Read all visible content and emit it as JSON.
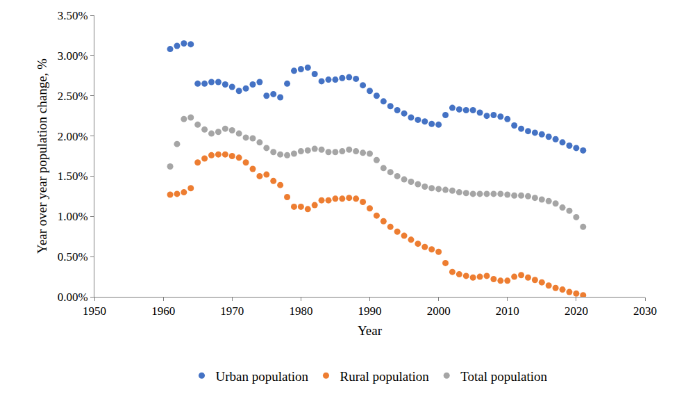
{
  "chart_data": {
    "type": "scatter",
    "marker": "circle",
    "grid": false,
    "legend": "bottom",
    "xlabel": "Year",
    "ylabel": "Year over year population change, %",
    "xlim": [
      1950,
      2030
    ],
    "xticks": [
      1950,
      1960,
      1970,
      1980,
      1990,
      2000,
      2010,
      2020,
      2030
    ],
    "ylim": [
      0,
      3.5
    ],
    "yticks": [
      {
        "value": 0,
        "label": "0.00%"
      },
      {
        "value": 0.5,
        "label": "0.50%"
      },
      {
        "value": 1,
        "label": "1.00%"
      },
      {
        "value": 1.5,
        "label": "1.50%"
      },
      {
        "value": 2,
        "label": "2.00%"
      },
      {
        "value": 2.5,
        "label": "2.50%"
      },
      {
        "value": 3,
        "label": "3.00%"
      },
      {
        "value": 3.5,
        "label": "3.50%"
      }
    ],
    "x": [
      1961,
      1962,
      1963,
      1964,
      1965,
      1966,
      1967,
      1968,
      1969,
      1970,
      1971,
      1972,
      1973,
      1974,
      1975,
      1976,
      1977,
      1978,
      1979,
      1980,
      1981,
      1982,
      1983,
      1984,
      1985,
      1986,
      1987,
      1988,
      1989,
      1990,
      1991,
      1992,
      1993,
      1994,
      1995,
      1996,
      1997,
      1998,
      1999,
      2000,
      2001,
      2002,
      2003,
      2004,
      2005,
      2006,
      2007,
      2008,
      2009,
      2010,
      2011,
      2012,
      2013,
      2014,
      2015,
      2016,
      2017,
      2018,
      2019,
      2020,
      2021
    ],
    "series": [
      {
        "name": "Urban population",
        "color": "#4472c4",
        "values": [
          3.08,
          3.12,
          3.15,
          3.14,
          2.65,
          2.65,
          2.67,
          2.67,
          2.64,
          2.61,
          2.56,
          2.59,
          2.64,
          2.67,
          2.5,
          2.52,
          2.48,
          2.65,
          2.81,
          2.83,
          2.85,
          2.77,
          2.68,
          2.7,
          2.7,
          2.72,
          2.73,
          2.71,
          2.63,
          2.56,
          2.5,
          2.43,
          2.37,
          2.32,
          2.28,
          2.23,
          2.2,
          2.18,
          2.15,
          2.14,
          2.26,
          2.35,
          2.33,
          2.32,
          2.32,
          2.29,
          2.25,
          2.26,
          2.24,
          2.21,
          2.13,
          2.09,
          2.06,
          2.04,
          2.02,
          1.99,
          1.96,
          1.92,
          1.88,
          1.85,
          1.82
        ]
      },
      {
        "name": "Rural population",
        "color": "#ed7d31",
        "values": [
          1.27,
          1.28,
          1.3,
          1.35,
          1.67,
          1.72,
          1.76,
          1.77,
          1.77,
          1.75,
          1.73,
          1.67,
          1.59,
          1.5,
          1.52,
          1.44,
          1.39,
          1.24,
          1.12,
          1.12,
          1.09,
          1.14,
          1.2,
          1.2,
          1.22,
          1.22,
          1.23,
          1.22,
          1.18,
          1.1,
          1.01,
          0.94,
          0.87,
          0.81,
          0.76,
          0.71,
          0.66,
          0.62,
          0.59,
          0.56,
          0.42,
          0.31,
          0.28,
          0.26,
          0.24,
          0.25,
          0.26,
          0.22,
          0.2,
          0.2,
          0.25,
          0.27,
          0.24,
          0.21,
          0.18,
          0.14,
          0.11,
          0.09,
          0.06,
          0.04,
          0.02
        ]
      },
      {
        "name": "Total population",
        "color": "#a5a5a5",
        "values": [
          1.62,
          1.9,
          2.21,
          2.23,
          2.14,
          2.08,
          2.03,
          2.05,
          2.09,
          2.07,
          2.03,
          1.98,
          1.97,
          1.92,
          1.85,
          1.8,
          1.77,
          1.76,
          1.78,
          1.81,
          1.82,
          1.84,
          1.83,
          1.8,
          1.8,
          1.81,
          1.83,
          1.81,
          1.79,
          1.78,
          1.7,
          1.6,
          1.55,
          1.5,
          1.46,
          1.43,
          1.4,
          1.37,
          1.35,
          1.34,
          1.33,
          1.32,
          1.3,
          1.29,
          1.28,
          1.28,
          1.28,
          1.28,
          1.28,
          1.27,
          1.26,
          1.26,
          1.25,
          1.23,
          1.21,
          1.19,
          1.16,
          1.11,
          1.07,
          0.99,
          0.87
        ]
      }
    ]
  }
}
